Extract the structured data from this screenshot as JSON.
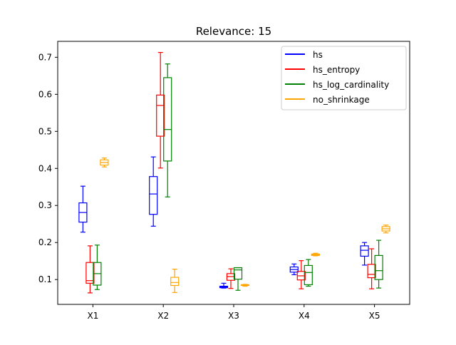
{
  "chart_data": {
    "type": "box",
    "title": "Relevance: 15",
    "xlabel": "",
    "ylabel": "",
    "categories": [
      "X1",
      "X2",
      "X3",
      "X4",
      "X5"
    ],
    "yticks": [
      "0.1",
      "0.2",
      "0.3",
      "0.4",
      "0.5",
      "0.6",
      "0.7"
    ],
    "ytick_values": [
      0.1,
      0.2,
      0.3,
      0.4,
      0.5,
      0.6,
      0.7
    ],
    "ylim": [
      0.033,
      0.743
    ],
    "grid": false,
    "legend_position": "top-right",
    "series": [
      {
        "name": "hs",
        "color": "#0000ff",
        "boxes": [
          {
            "whisker_low": 0.228,
            "q1": 0.255,
            "median": 0.281,
            "q3": 0.307,
            "whisker_high": 0.352
          },
          {
            "whisker_low": 0.244,
            "q1": 0.276,
            "median": 0.331,
            "q3": 0.378,
            "whisker_high": 0.431
          },
          {
            "whisker_low": 0.077,
            "q1": 0.078,
            "median": 0.08,
            "q3": 0.082,
            "whisker_high": 0.09
          },
          {
            "whisker_low": 0.113,
            "q1": 0.12,
            "median": 0.127,
            "q3": 0.134,
            "whisker_high": 0.142
          },
          {
            "whisker_low": 0.139,
            "q1": 0.163,
            "median": 0.179,
            "q3": 0.191,
            "whisker_high": 0.2
          }
        ]
      },
      {
        "name": "hs_entropy",
        "color": "#ff0000",
        "boxes": [
          {
            "whisker_low": 0.064,
            "q1": 0.09,
            "median": 0.097,
            "q3": 0.146,
            "whisker_high": 0.191
          },
          {
            "whisker_low": 0.401,
            "q1": 0.487,
            "median": 0.57,
            "q3": 0.598,
            "whisker_high": 0.713
          },
          {
            "whisker_low": 0.076,
            "q1": 0.098,
            "median": 0.108,
            "q3": 0.116,
            "whisker_high": 0.129
          },
          {
            "whisker_low": 0.075,
            "q1": 0.099,
            "median": 0.11,
            "q3": 0.122,
            "whisker_high": 0.151
          },
          {
            "whisker_low": 0.075,
            "q1": 0.105,
            "median": 0.114,
            "q3": 0.141,
            "whisker_high": 0.183
          }
        ]
      },
      {
        "name": "hs_log_cardinality",
        "color": "#008000",
        "boxes": [
          {
            "whisker_low": 0.073,
            "q1": 0.085,
            "median": 0.116,
            "q3": 0.146,
            "whisker_high": 0.193
          },
          {
            "whisker_low": 0.323,
            "q1": 0.42,
            "median": 0.505,
            "q3": 0.645,
            "whisker_high": 0.682
          },
          {
            "whisker_low": 0.071,
            "q1": 0.101,
            "median": 0.126,
            "q3": 0.132,
            "whisker_high": 0.132
          },
          {
            "whisker_low": 0.082,
            "q1": 0.086,
            "median": 0.119,
            "q3": 0.138,
            "whisker_high": 0.154
          },
          {
            "whisker_low": 0.077,
            "q1": 0.1,
            "median": 0.124,
            "q3": 0.165,
            "whisker_high": 0.206
          }
        ]
      },
      {
        "name": "no_shrinkage",
        "color": "#ffa500",
        "boxes": [
          {
            "whisker_low": 0.404,
            "q1": 0.409,
            "median": 0.416,
            "q3": 0.423,
            "whisker_high": 0.428
          },
          {
            "whisker_low": 0.065,
            "q1": 0.084,
            "median": 0.092,
            "q3": 0.106,
            "whisker_high": 0.128
          },
          {
            "whisker_low": 0.082,
            "q1": 0.084,
            "median": 0.085,
            "q3": 0.086,
            "whisker_high": 0.087
          },
          {
            "whisker_low": 0.164,
            "q1": 0.165,
            "median": 0.167,
            "q3": 0.169,
            "whisker_high": 0.171
          },
          {
            "whisker_low": 0.226,
            "q1": 0.231,
            "median": 0.237,
            "q3": 0.243,
            "whisker_high": 0.247
          }
        ]
      }
    ]
  }
}
